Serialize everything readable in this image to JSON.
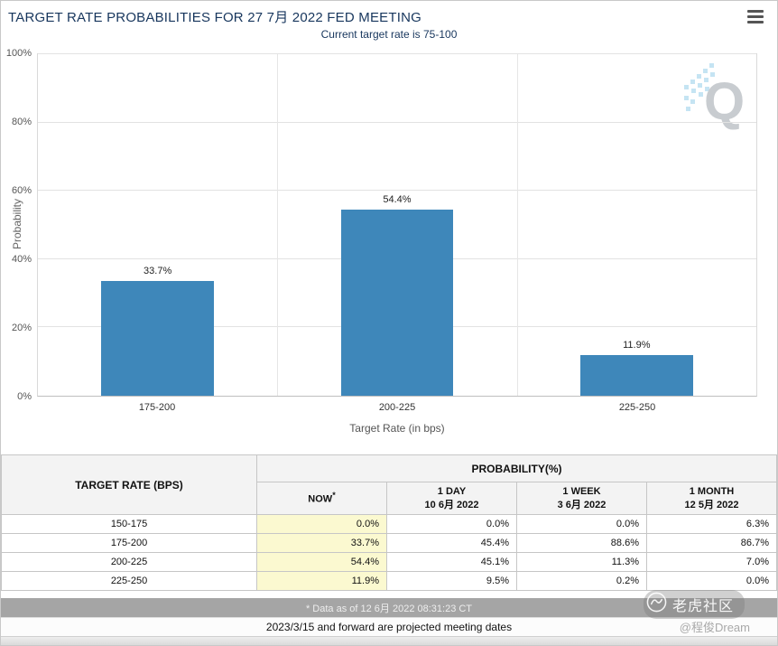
{
  "header": {
    "title": "TARGET RATE PROBABILITIES FOR 27 7月 2022 FED MEETING",
    "subtitle": "Current target rate is 75-100",
    "menu_icon": "hamburger-icon"
  },
  "chart_data": {
    "type": "bar",
    "title": "TARGET RATE PROBABILITIES FOR 27 7月 2022 FED MEETING",
    "subtitle": "Current target rate is 75-100",
    "categories": [
      "175-200",
      "200-225",
      "225-250"
    ],
    "values": [
      33.7,
      54.4,
      11.9
    ],
    "value_labels": [
      "33.7%",
      "54.4%",
      "11.9%"
    ],
    "xlabel": "Target Rate (in bps)",
    "ylabel": "Probability",
    "ylim": [
      0,
      100
    ],
    "yticks": [
      0,
      20,
      40,
      60,
      80,
      100
    ],
    "ytick_labels": [
      "0%",
      "20%",
      "40%",
      "60%",
      "80%",
      "100%"
    ],
    "grid": true,
    "legend": "none",
    "bar_color": "#3e87ba"
  },
  "table": {
    "rate_header": "TARGET RATE (BPS)",
    "group_header": "PROBABILITY(%)",
    "sub_headers": [
      {
        "line1": "NOW",
        "sup": "*",
        "line2": ""
      },
      {
        "line1": "1 DAY",
        "line2": "10 6月 2022"
      },
      {
        "line1": "1 WEEK",
        "line2": "3 6月 2022"
      },
      {
        "line1": "1 MONTH",
        "line2": "12 5月 2022"
      }
    ],
    "rows": [
      {
        "rate": "150-175",
        "now": "0.0%",
        "day": "0.0%",
        "week": "0.0%",
        "month": "6.3%"
      },
      {
        "rate": "175-200",
        "now": "33.7%",
        "day": "45.4%",
        "week": "88.6%",
        "month": "86.7%"
      },
      {
        "rate": "200-225",
        "now": "54.4%",
        "day": "45.1%",
        "week": "11.3%",
        "month": "7.0%"
      },
      {
        "rate": "225-250",
        "now": "11.9%",
        "day": "9.5%",
        "week": "0.2%",
        "month": "0.0%"
      }
    ],
    "footnote": "* Data as of 12 6月 2022 08:31:23 CT",
    "note2": "2023/3/15 and forward are projected meeting dates"
  },
  "watermarks": {
    "q_letter": "Q",
    "tiger_label": "老虎社区",
    "author": "@程俊Dream"
  },
  "colors": {
    "bar": "#3e87ba",
    "title": "#17365d",
    "now_highlight": "#fbf9d0",
    "footnote_bar": "#a5a5a5"
  }
}
